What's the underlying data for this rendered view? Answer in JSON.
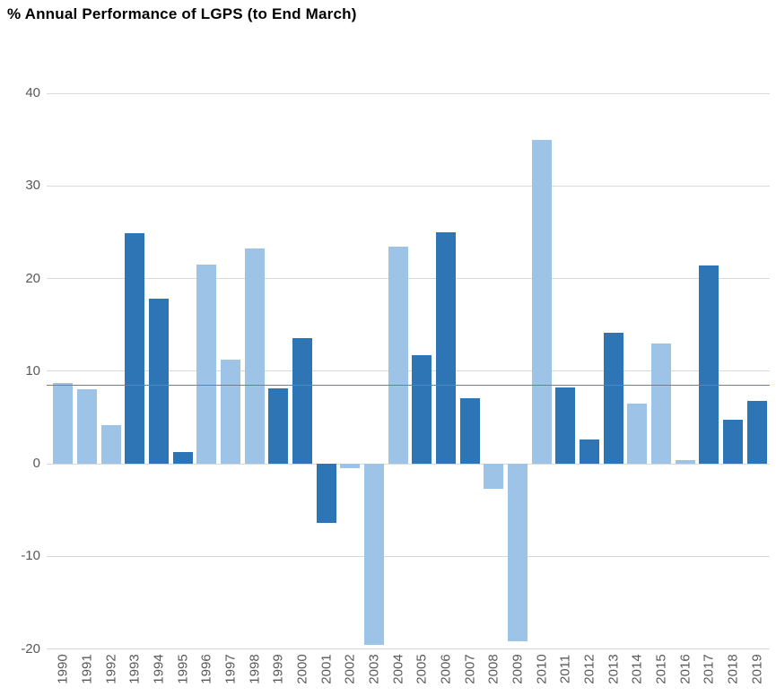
{
  "title": "% Annual Performance of LGPS (to End March)",
  "chart_data": {
    "type": "bar",
    "title": "% Annual Performance of LGPS (to End March)",
    "categories": [
      "1990",
      "1991",
      "1992",
      "1993",
      "1994",
      "1995",
      "1996",
      "1997",
      "1998",
      "1999",
      "2000",
      "2001",
      "2002",
      "2003",
      "2004",
      "2005",
      "2006",
      "2007",
      "2008",
      "2009",
      "2010",
      "2011",
      "2012",
      "2013",
      "2014",
      "2015",
      "2016",
      "2017",
      "2018",
      "2019"
    ],
    "values": [
      8.7,
      8.0,
      4.2,
      24.9,
      17.8,
      1.3,
      21.5,
      11.2,
      23.2,
      8.1,
      13.6,
      -6.4,
      -0.5,
      -19.6,
      23.4,
      11.7,
      25.0,
      7.1,
      -2.7,
      -19.2,
      35.0,
      8.2,
      2.6,
      14.1,
      6.5,
      13.0,
      0.4,
      21.4,
      4.7,
      6.8
    ],
    "bar_styles": [
      "light",
      "light",
      "light",
      "dark",
      "dark",
      "dark",
      "light",
      "light",
      "light",
      "dark",
      "dark",
      "dark",
      "light",
      "light",
      "light",
      "dark",
      "dark",
      "dark",
      "light",
      "light",
      "light",
      "dark",
      "dark",
      "dark",
      "light",
      "light",
      "light",
      "dark",
      "dark",
      "dark"
    ],
    "average_line_value": 8.5,
    "y_ticks": [
      40,
      30,
      20,
      10,
      0,
      -10,
      -20
    ],
    "ylim": [
      -20,
      40
    ],
    "xlabel": "",
    "ylabel": "",
    "legend": "none",
    "grid": "horizontal",
    "colors": {
      "bar_light": "#9dc3e6",
      "bar_dark": "#2e75b6",
      "average_line": "#4a89c4",
      "gridline": "#d9d9d9",
      "axis_text": "#595959",
      "title_text": "#000000",
      "background": "#ffffff"
    }
  }
}
